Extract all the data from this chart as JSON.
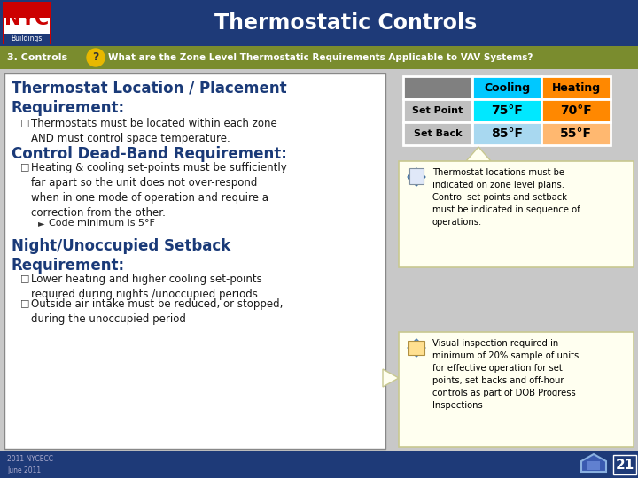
{
  "title": "Thermostatic Controls",
  "title_bg": "#1e3a78",
  "title_color": "#ffffff",
  "subtitle_bg": "#7a8c2e",
  "subtitle_text": "What are the Zone Level Thermostatic Requirements Applicable to VAV Systems?",
  "subtitle_label": "3. Controls",
  "subtitle_qmark_bg": "#e8b800",
  "main_bg": "#c8c8c8",
  "content_bg": "#ffffff",
  "content_border": "#888888",
  "section1_title": "Thermostat Location / Placement\nRequirement:",
  "section1_bullet": "Thermostats must be located within each zone\nAND must control space temperature.",
  "section2_title": "Control Dead-Band Requirement:",
  "section2_bullet1": "Heating & cooling set-points must be sufficiently\nfar apart so the unit does not over-respond\nwhen in one mode of operation and require a\ncorrection from the other.",
  "section2_subbullet": "Code minimum is 5°F",
  "section3_title": "Night/Unoccupied Setback\nRequirement:",
  "section3_bullet1": "Lower heating and higher cooling set-points\nrequired during nights /unoccupied periods",
  "section3_bullet2": "Outside air intake must be reduced, or stopped,\nduring the unoccupied period",
  "footer_text": "2011 NYCECC\nJune 2011",
  "page_num": "21",
  "table_header_gray": "#808080",
  "table_header_cooling": "#00c8ff",
  "table_header_heating": "#ff8800",
  "table_row1_label": "#c0c0c0",
  "table_row1_cooling": "#00e8ff",
  "table_row1_heating": "#ff8800",
  "table_row2_label": "#c0c0c0",
  "table_row2_cooling": "#a8d8f0",
  "table_row2_heating": "#ffb870",
  "callout_bg": "#fffff0",
  "callout_border": "#c8c890",
  "callout1_text": "Thermostat locations must be\nindicated on zone level plans.\nControl set points and setback\nmust be indicated in sequence of\noperations.",
  "callout2_text": "Visual inspection required in\nminimum of 20% sample of units\nfor effective operation for set\npoints, set backs and off-hour\ncontrols as part of DOB Progress\nInspections",
  "text_dark": "#1a1a1a",
  "section_title_color": "#1a3a78",
  "footer_bg": "#1e3a78"
}
